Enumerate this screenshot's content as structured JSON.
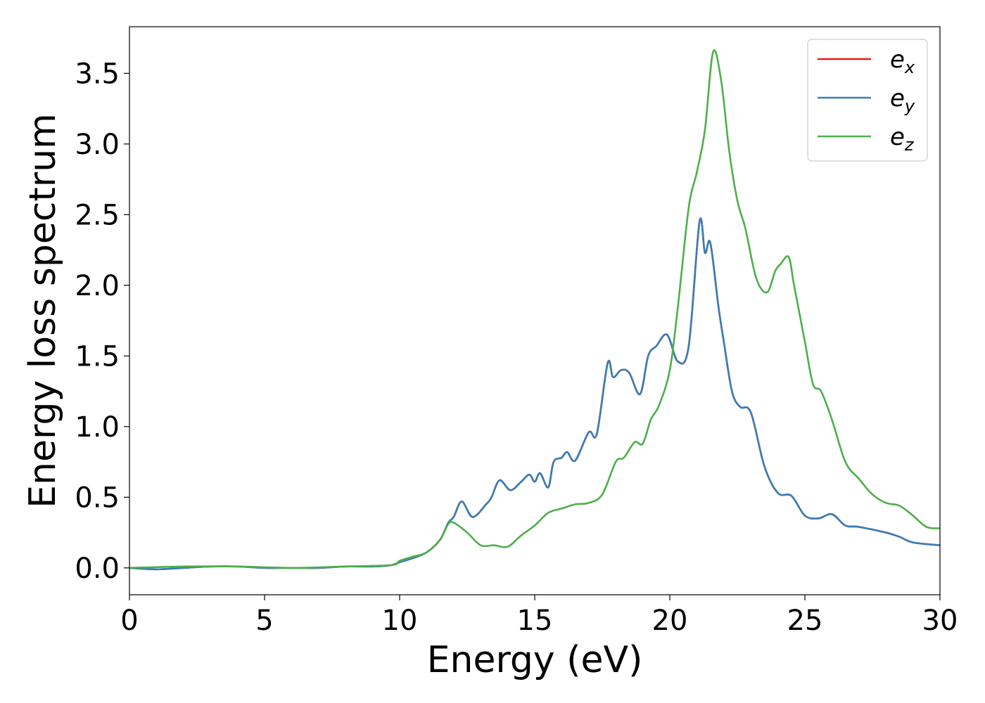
{
  "chart_data": {
    "type": "line",
    "xlabel": "Energy (eV)",
    "ylabel": "Energy loss spectrum",
    "xlim": [
      0,
      30
    ],
    "ylim": [
      -0.19,
      3.83
    ],
    "x_ticks": [
      "0",
      "5",
      "10",
      "15",
      "20",
      "25",
      "30"
    ],
    "x_tick_values": [
      0,
      5,
      10,
      15,
      20,
      25,
      30
    ],
    "y_ticks": [
      "0.0",
      "0.5",
      "1.0",
      "1.5",
      "2.0",
      "2.5",
      "3.0",
      "3.5"
    ],
    "y_tick_values": [
      0.0,
      0.5,
      1.0,
      1.5,
      2.0,
      2.5,
      3.0,
      3.5
    ],
    "grid": false,
    "legend_position": "top-right",
    "series": [
      {
        "name": "e_x",
        "label_base": "e",
        "label_sub": "x",
        "color": "#e41a1c",
        "points": [
          [
            0,
            0
          ],
          [
            1,
            -0.01
          ],
          [
            2,
            0.0
          ],
          [
            3,
            0.01
          ],
          [
            4,
            0.01
          ],
          [
            5,
            0.0
          ],
          [
            6,
            0.0
          ],
          [
            7,
            0.0
          ],
          [
            8,
            0.01
          ],
          [
            9,
            0.01
          ],
          [
            9.7,
            0.02
          ],
          [
            10,
            0.04
          ],
          [
            10.5,
            0.07
          ],
          [
            11,
            0.11
          ],
          [
            11.5,
            0.2
          ],
          [
            11.8,
            0.32
          ],
          [
            12,
            0.36
          ],
          [
            12.3,
            0.47
          ],
          [
            12.7,
            0.36
          ],
          [
            13.2,
            0.45
          ],
          [
            13.4,
            0.5
          ],
          [
            13.7,
            0.62
          ],
          [
            14.1,
            0.55
          ],
          [
            14.5,
            0.61
          ],
          [
            14.8,
            0.66
          ],
          [
            15,
            0.61
          ],
          [
            15.2,
            0.67
          ],
          [
            15.5,
            0.57
          ],
          [
            15.7,
            0.75
          ],
          [
            16,
            0.78
          ],
          [
            16.2,
            0.82
          ],
          [
            16.5,
            0.76
          ],
          [
            17,
            0.96
          ],
          [
            17.3,
            0.95
          ],
          [
            17.7,
            1.45
          ],
          [
            17.9,
            1.35
          ],
          [
            18.2,
            1.4
          ],
          [
            18.5,
            1.38
          ],
          [
            18.9,
            1.23
          ],
          [
            19.2,
            1.5
          ],
          [
            19.5,
            1.57
          ],
          [
            19.9,
            1.65
          ],
          [
            20.3,
            1.46
          ],
          [
            20.7,
            1.57
          ],
          [
            21.1,
            2.45
          ],
          [
            21.3,
            2.23
          ],
          [
            21.5,
            2.3
          ],
          [
            21.8,
            1.85
          ],
          [
            22,
            1.6
          ],
          [
            22.3,
            1.25
          ],
          [
            22.6,
            1.14
          ],
          [
            23,
            1.1
          ],
          [
            23.5,
            0.72
          ],
          [
            24,
            0.53
          ],
          [
            24.5,
            0.51
          ],
          [
            25,
            0.37
          ],
          [
            25.5,
            0.35
          ],
          [
            26,
            0.38
          ],
          [
            26.5,
            0.3
          ],
          [
            27,
            0.29
          ],
          [
            28,
            0.25
          ],
          [
            28.5,
            0.22
          ],
          [
            29,
            0.18
          ],
          [
            30,
            0.16
          ]
        ]
      },
      {
        "name": "e_y",
        "label_base": "e",
        "label_sub": "y",
        "color": "#377eb8",
        "points": [
          [
            0,
            0
          ],
          [
            1,
            -0.01
          ],
          [
            2,
            0.0
          ],
          [
            3,
            0.01
          ],
          [
            4,
            0.01
          ],
          [
            5,
            0.0
          ],
          [
            6,
            0.0
          ],
          [
            7,
            0.0
          ],
          [
            8,
            0.01
          ],
          [
            9,
            0.01
          ],
          [
            9.7,
            0.02
          ],
          [
            10,
            0.04
          ],
          [
            10.5,
            0.07
          ],
          [
            11,
            0.11
          ],
          [
            11.5,
            0.2
          ],
          [
            11.8,
            0.32
          ],
          [
            12,
            0.36
          ],
          [
            12.3,
            0.47
          ],
          [
            12.7,
            0.36
          ],
          [
            13.2,
            0.45
          ],
          [
            13.4,
            0.5
          ],
          [
            13.7,
            0.62
          ],
          [
            14.1,
            0.55
          ],
          [
            14.5,
            0.61
          ],
          [
            14.8,
            0.66
          ],
          [
            15,
            0.61
          ],
          [
            15.2,
            0.67
          ],
          [
            15.5,
            0.57
          ],
          [
            15.7,
            0.75
          ],
          [
            16,
            0.78
          ],
          [
            16.2,
            0.82
          ],
          [
            16.5,
            0.76
          ],
          [
            17,
            0.96
          ],
          [
            17.3,
            0.95
          ],
          [
            17.7,
            1.45
          ],
          [
            17.9,
            1.35
          ],
          [
            18.2,
            1.4
          ],
          [
            18.5,
            1.38
          ],
          [
            18.9,
            1.23
          ],
          [
            19.2,
            1.5
          ],
          [
            19.5,
            1.57
          ],
          [
            19.9,
            1.65
          ],
          [
            20.3,
            1.46
          ],
          [
            20.7,
            1.57
          ],
          [
            21.1,
            2.45
          ],
          [
            21.3,
            2.23
          ],
          [
            21.5,
            2.3
          ],
          [
            21.8,
            1.85
          ],
          [
            22,
            1.6
          ],
          [
            22.3,
            1.25
          ],
          [
            22.6,
            1.14
          ],
          [
            23,
            1.1
          ],
          [
            23.5,
            0.72
          ],
          [
            24,
            0.53
          ],
          [
            24.5,
            0.51
          ],
          [
            25,
            0.37
          ],
          [
            25.5,
            0.35
          ],
          [
            26,
            0.38
          ],
          [
            26.5,
            0.3
          ],
          [
            27,
            0.29
          ],
          [
            28,
            0.25
          ],
          [
            28.5,
            0.22
          ],
          [
            29,
            0.18
          ],
          [
            30,
            0.16
          ]
        ]
      },
      {
        "name": "e_z",
        "label_base": "e",
        "label_sub": "z",
        "color": "#4daf4a",
        "points": [
          [
            0,
            0
          ],
          [
            2,
            0.01
          ],
          [
            4,
            0.01
          ],
          [
            6,
            0.0
          ],
          [
            8,
            0.01
          ],
          [
            9.7,
            0.02
          ],
          [
            10,
            0.05
          ],
          [
            10.5,
            0.08
          ],
          [
            11,
            0.11
          ],
          [
            11.5,
            0.2
          ],
          [
            11.8,
            0.31
          ],
          [
            12,
            0.32
          ],
          [
            12.5,
            0.25
          ],
          [
            13,
            0.16
          ],
          [
            13.5,
            0.16
          ],
          [
            14,
            0.15
          ],
          [
            14.5,
            0.23
          ],
          [
            15,
            0.3
          ],
          [
            15.5,
            0.39
          ],
          [
            16,
            0.42
          ],
          [
            16.5,
            0.45
          ],
          [
            17,
            0.46
          ],
          [
            17.5,
            0.52
          ],
          [
            18,
            0.75
          ],
          [
            18.3,
            0.78
          ],
          [
            18.7,
            0.89
          ],
          [
            19,
            0.88
          ],
          [
            19.3,
            1.05
          ],
          [
            19.6,
            1.15
          ],
          [
            20,
            1.4
          ],
          [
            20.3,
            1.85
          ],
          [
            20.7,
            2.55
          ],
          [
            21,
            2.8
          ],
          [
            21.3,
            3.1
          ],
          [
            21.6,
            3.65
          ],
          [
            21.9,
            3.45
          ],
          [
            22.2,
            2.95
          ],
          [
            22.5,
            2.6
          ],
          [
            22.8,
            2.4
          ],
          [
            23.2,
            2.05
          ],
          [
            23.6,
            1.95
          ],
          [
            23.9,
            2.1
          ],
          [
            24.1,
            2.15
          ],
          [
            24.4,
            2.2
          ],
          [
            24.6,
            2.0
          ],
          [
            25,
            1.6
          ],
          [
            25.3,
            1.3
          ],
          [
            25.6,
            1.25
          ],
          [
            26,
            1.05
          ],
          [
            26.5,
            0.75
          ],
          [
            27,
            0.63
          ],
          [
            27.5,
            0.52
          ],
          [
            28,
            0.46
          ],
          [
            28.5,
            0.44
          ],
          [
            29,
            0.37
          ],
          [
            29.5,
            0.29
          ],
          [
            30,
            0.28
          ]
        ]
      }
    ]
  }
}
